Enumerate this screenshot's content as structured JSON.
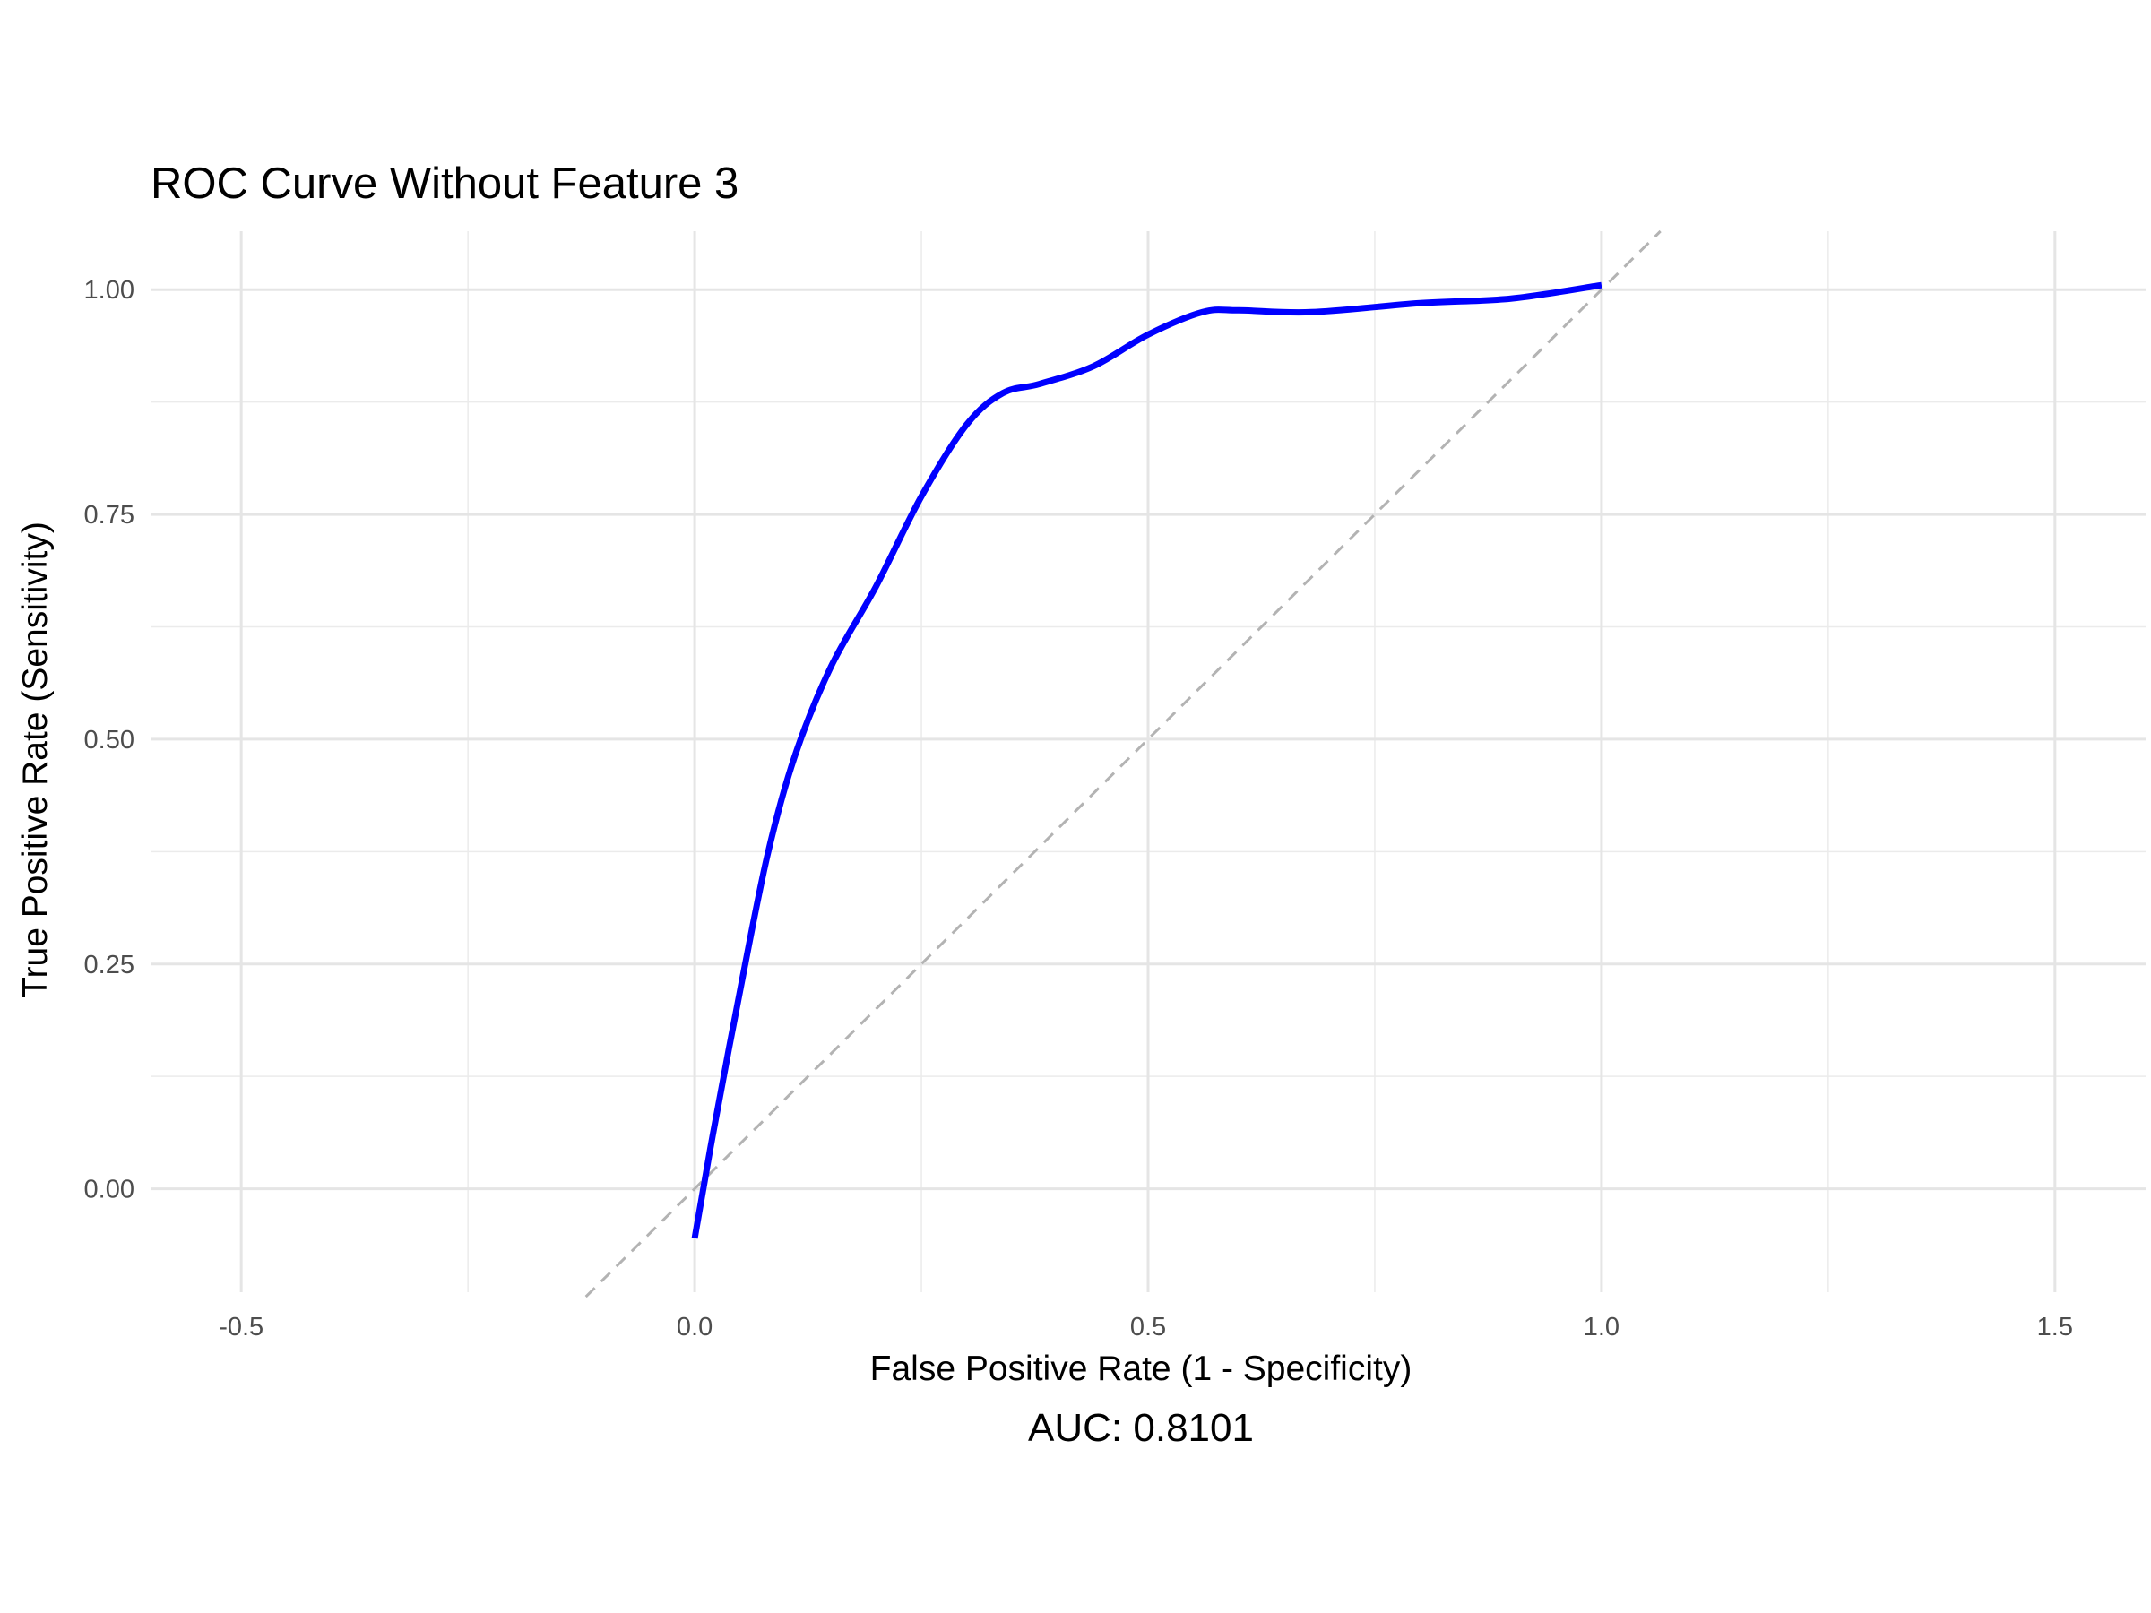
{
  "chart_data": {
    "type": "line",
    "title": "ROC Curve Without Feature 3",
    "xlabel": "False Positive Rate (1 - Specificity)",
    "ylabel": "True Positive Rate (Sensitivity)",
    "caption": "AUC: 0.8101",
    "xlim": [
      -0.6,
      1.6
    ],
    "ylim": [
      -0.115,
      1.065
    ],
    "x_ticks": [
      -0.5,
      0.0,
      0.5,
      1.0,
      1.5
    ],
    "x_tick_labels": [
      "-0.5",
      "0.0",
      "0.5",
      "1.0",
      "1.5"
    ],
    "y_ticks": [
      0.0,
      0.25,
      0.5,
      0.75,
      1.0
    ],
    "y_tick_labels": [
      "0.00",
      "0.25",
      "0.50",
      "0.75",
      "1.00"
    ],
    "grid": true,
    "legend": "none",
    "series": [
      {
        "color": "#0000ff",
        "x": [
          0.0,
          0.02,
          0.05,
          0.08,
          0.11,
          0.15,
          0.2,
          0.25,
          0.3,
          0.34,
          0.38,
          0.44,
          0.5,
          0.56,
          0.6,
          0.68,
          0.8,
          0.9,
          1.0
        ],
        "y": [
          -0.055,
          0.06,
          0.22,
          0.37,
          0.48,
          0.58,
          0.67,
          0.77,
          0.85,
          0.885,
          0.895,
          0.915,
          0.95,
          0.975,
          0.977,
          0.975,
          0.985,
          0.99,
          1.005
        ]
      }
    ],
    "reference_line": {
      "color": "#b3b3b3",
      "style": "dashed",
      "x": [
        -0.12,
        1.065
      ],
      "y": [
        -0.12,
        1.065
      ]
    }
  }
}
